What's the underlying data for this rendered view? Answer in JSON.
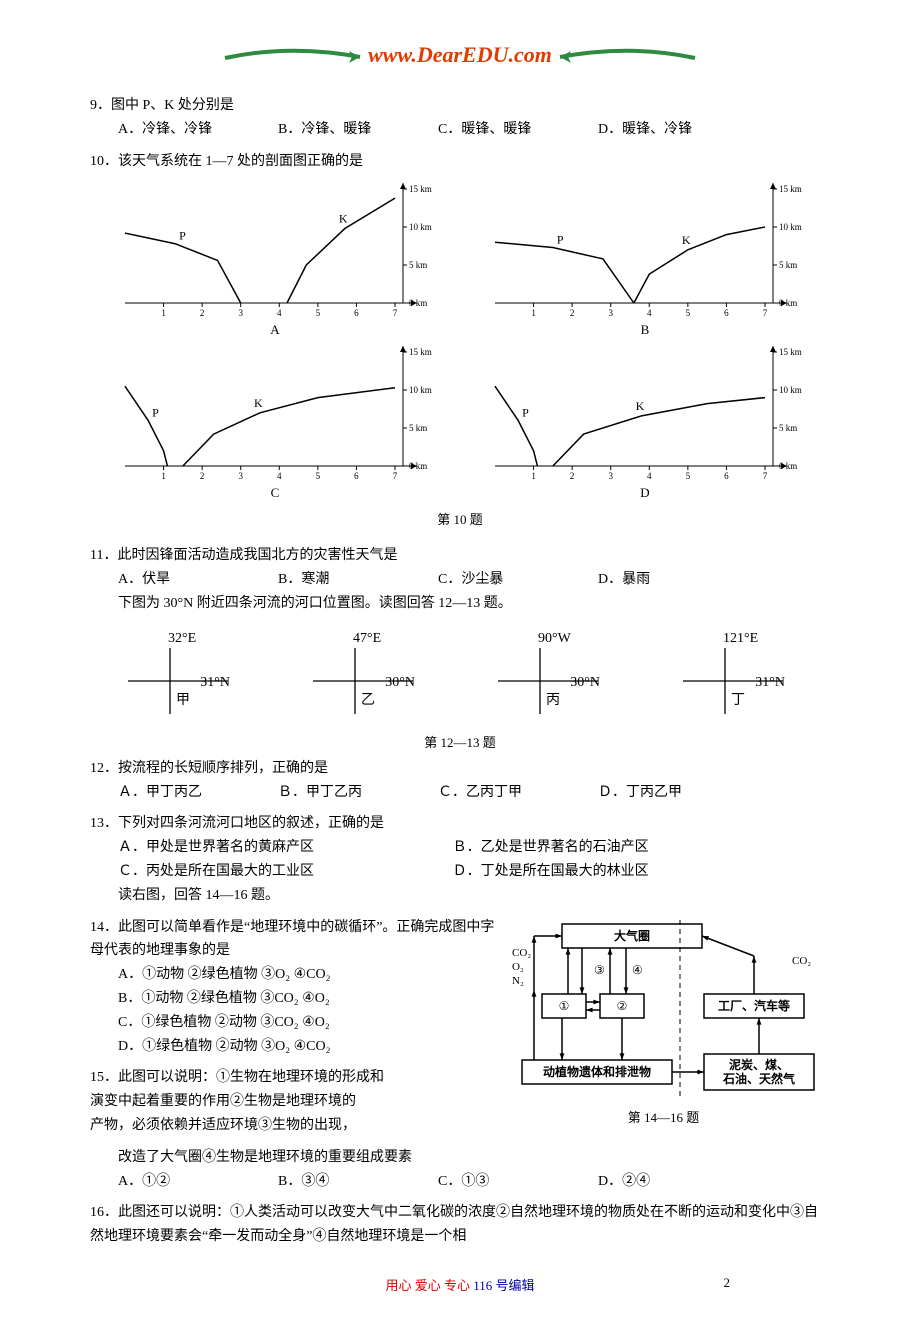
{
  "header": {
    "url": "www.DearEDU.com",
    "url_color": "#e23a00",
    "accent_color": "#2d8a3e"
  },
  "q9": {
    "num": "9．",
    "text": "图中 P、K 处分别是",
    "A": "A．冷锋、冷锋",
    "B": "B．冷锋、暖锋",
    "C": "C．暖锋、暖锋",
    "D": "D．暖锋、冷锋"
  },
  "q10": {
    "num": "10．",
    "text": "该天气系统在 1—7 处的剖面图正确的是",
    "caption": "第 10 题",
    "labels": {
      "A": "A",
      "B": "B",
      "C": "C",
      "D": "D"
    },
    "chart": {
      "type": "line",
      "x_labels": [
        "1",
        "2",
        "3",
        "4",
        "5",
        "6",
        "7"
      ],
      "y_labels": [
        "0 km",
        "5 km",
        "10 km",
        "15 km"
      ],
      "ylim": [
        0,
        15
      ],
      "series_labels": {
        "P": "P",
        "K": "K"
      },
      "line_color": "#000000",
      "line_width": 1.5,
      "axis_color": "#000000",
      "background_color": "#ffffff",
      "label_fontsize": 9,
      "panels": {
        "A": {
          "P": [
            [
              0,
              9.2
            ],
            [
              1.3,
              7.8
            ],
            [
              2.4,
              5.6
            ],
            [
              3.0,
              0
            ]
          ],
          "K": [
            [
              4.2,
              0
            ],
            [
              4.7,
              5.0
            ],
            [
              5.7,
              9.8
            ],
            [
              7.0,
              13.8
            ]
          ]
        },
        "B": {
          "P": [
            [
              0,
              8.0
            ],
            [
              1.5,
              7.3
            ],
            [
              2.8,
              5.8
            ],
            [
              3.6,
              0
            ]
          ],
          "K": [
            [
              3.6,
              0
            ],
            [
              4.0,
              3.8
            ],
            [
              5.0,
              7.0
            ],
            [
              6.0,
              9.0
            ],
            [
              7.0,
              10.0
            ]
          ]
        },
        "C": {
          "P": [
            [
              0,
              10.5
            ],
            [
              0.6,
              6.0
            ],
            [
              1.0,
              2.0
            ],
            [
              1.1,
              0
            ]
          ],
          "K": [
            [
              1.5,
              0
            ],
            [
              2.3,
              4.2
            ],
            [
              3.5,
              7.0
            ],
            [
              5.0,
              9.0
            ],
            [
              7.0,
              10.3
            ]
          ]
        },
        "D": {
          "P": [
            [
              0,
              10.5
            ],
            [
              0.6,
              6.0
            ],
            [
              1.0,
              2.0
            ],
            [
              1.1,
              0
            ]
          ],
          "K": [
            [
              1.5,
              0
            ],
            [
              2.3,
              4.2
            ],
            [
              3.8,
              6.6
            ],
            [
              5.5,
              8.2
            ],
            [
              7.0,
              9.0
            ]
          ]
        }
      }
    }
  },
  "q11": {
    "num": "11．",
    "text": "此时因锋面活动造成我国北方的灾害性天气是",
    "A": "A．伏旱",
    "B": "B．寒潮",
    "C": "C．沙尘暴",
    "D": "D．暴雨",
    "lead": "下图为 30°N 附近四条河流的河口位置图。读图回答 12—13 题。"
  },
  "crosses": {
    "jia": {
      "top": "32°E",
      "right": "31°N",
      "label": "甲"
    },
    "yi": {
      "top": "47°E",
      "right": "30°N",
      "label": "乙"
    },
    "bing": {
      "top": "90°W",
      "right": "30°N",
      "label": "丙"
    },
    "ding": {
      "top": "121°E",
      "right": "31°N",
      "label": "丁"
    },
    "caption": "第 12—13 题",
    "line_color": "#000000",
    "label_fontsize": 14
  },
  "q12": {
    "num": "12．",
    "text": "按流程的长短顺序排列，正确的是",
    "A": "Ａ．甲丁丙乙",
    "B": "Ｂ．甲丁乙丙",
    "C": "Ｃ．乙丙丁甲",
    "D": "Ｄ．丁丙乙甲"
  },
  "q13": {
    "num": "13．",
    "text": "下列对四条河流河口地区的叙述，正确的是",
    "A": "Ａ．甲处是世界著名的黄麻产区",
    "B": "Ｂ．乙处是世界著名的石油产区",
    "C": "Ｃ．丙处是所在国最大的工业区",
    "D": "Ｄ．丁处是所在国最大的林业区",
    "lead": "读右图，回答 14—16 题。"
  },
  "q14": {
    "num": "14．",
    "text": "此图可以简单看作是“地理环境中的碳循环”。正确完成图中字母代表的地理事象的是",
    "A": "A．①动物 ②绿色植物 ③O₂ ④CO₂",
    "B": "B．①动物 ②绿色植物 ③CO₂ ④O₂",
    "C": "C．①绿色植物 ②动物 ③CO₂ ④O₂",
    "D": "D．①绿色植物 ②动物 ③O₂ ④CO₂"
  },
  "carbon_diagram": {
    "boxes": {
      "atmo": "大气圈",
      "one": "①",
      "two": "②",
      "factory": "工厂、汽车等",
      "remains": "动植物遗体和排泄物",
      "fuels": "泥炭、煤、\n石油、天然气"
    },
    "labels": {
      "co2": "CO₂",
      "o2": "O₂",
      "n2": "N₂",
      "three": "③",
      "four": "④"
    },
    "caption": "第 14—16 题",
    "line_color": "#000000",
    "box_border_width": 1.5,
    "font_size": 12
  },
  "q15": {
    "num": "15．",
    "text": "此图可以说明：①生物在地理环境的形成和演变中起着重要的作用②生物是地理环境的产物，必须依赖并适应环境③生物的出现，改造了大气圈④生物是地理环境的重要组成要素",
    "A": "A．①②",
    "B": "B．③④",
    "C": "C．①③",
    "D": "D．②④"
  },
  "q16": {
    "num": "16．",
    "text": "此图还可以说明：①人类活动可以改变大气中二氧化碳的浓度②自然地理环境的物质处在不断的运动和变化中③自然地理环境要素会“牵一发而动全身”④自然地理环境是一个相"
  },
  "footer": {
    "red": "用心 爱心 专心",
    "blue": "  116 号编辑",
    "page": "2"
  }
}
